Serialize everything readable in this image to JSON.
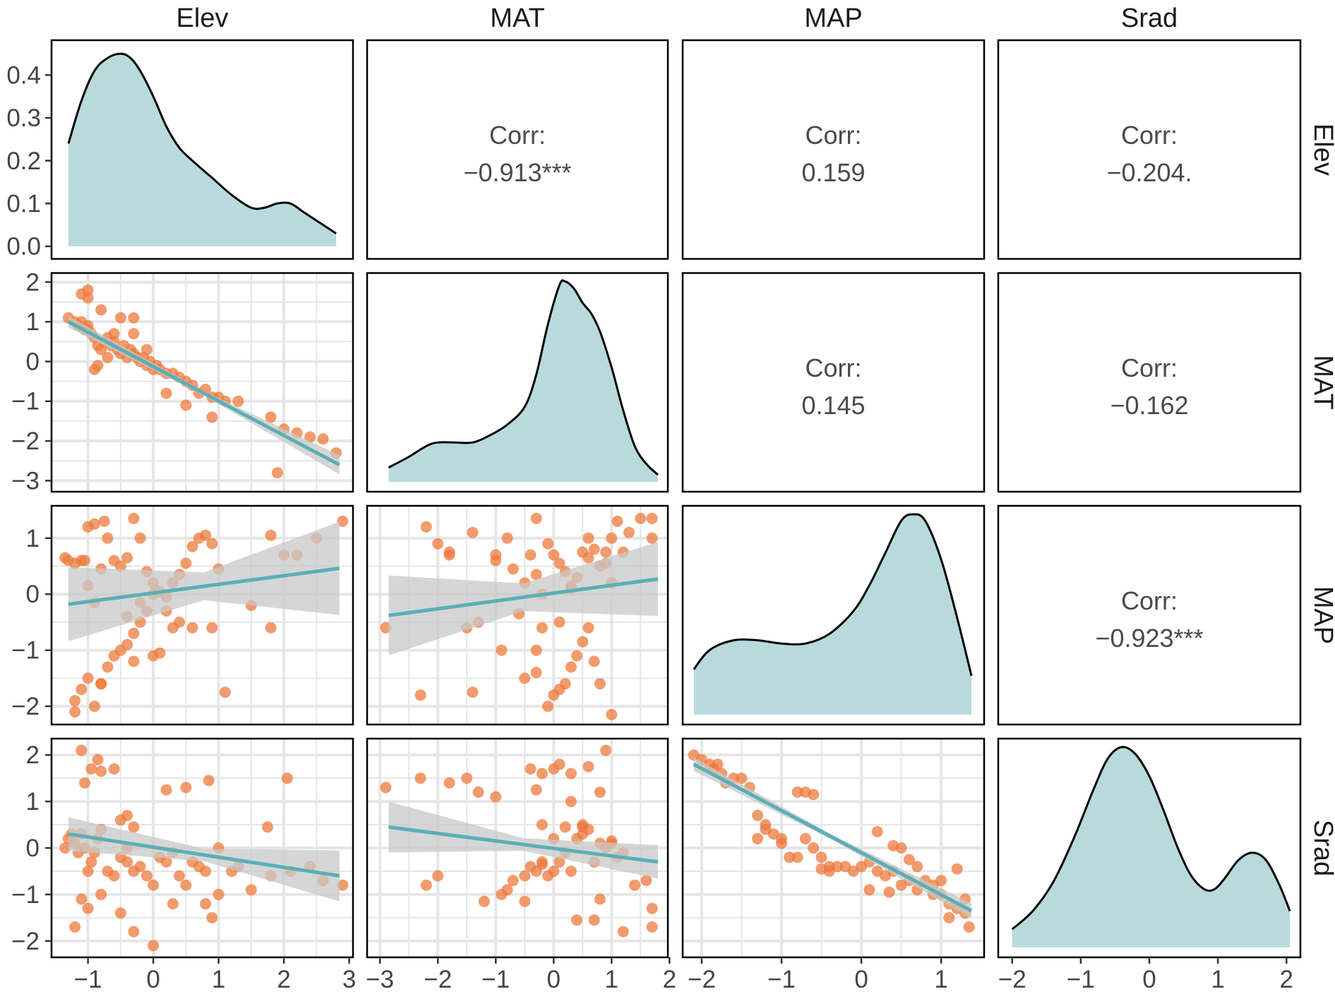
{
  "chart_data": {
    "type": "scatter-matrix",
    "variables": [
      "Elev",
      "MAT",
      "MAP",
      "Srad"
    ],
    "colors": {
      "density_fill": "#b8dadd",
      "density_line": "#000000",
      "point": "#ee7a3c",
      "fit_line": "#5aafb6",
      "ci_band": "#c8c8c8",
      "grid": "#e6e6e6",
      "panel_border": "#000000"
    },
    "x_ranges": [
      [
        -1.45,
        2.95
      ],
      [
        -3.1,
        1.85
      ],
      [
        -2.15,
        1.45
      ],
      [
        -2.1,
        2.1
      ]
    ],
    "y_ranges": [
      [
        -3.1,
        2.05
      ],
      [
        -2.2,
        1.45
      ],
      [
        -2.2,
        2.2
      ]
    ],
    "density_y_range": [
      -0.013,
      0.465
    ],
    "x_ticks": [
      [
        "−1",
        "0",
        "1",
        "2",
        "3"
      ],
      [
        "−3",
        "−2",
        "−1",
        "0",
        "1",
        "2"
      ],
      [
        "−2",
        "−1",
        "0",
        "1"
      ],
      [
        "−2",
        "−1",
        "0",
        "1",
        "2"
      ]
    ],
    "x_tick_values": [
      [
        -1,
        0,
        1,
        2,
        3
      ],
      [
        -3,
        -2,
        -1,
        0,
        1,
        2
      ],
      [
        -2,
        -1,
        0,
        1
      ],
      [
        -2,
        -1,
        0,
        1,
        2
      ]
    ],
    "density_y_ticks": [
      "0.0",
      "0.1",
      "0.2",
      "0.3",
      "0.4"
    ],
    "density_y_tick_values": [
      0,
      0.1,
      0.2,
      0.3,
      0.4
    ],
    "y_ticks": [
      [
        "−3",
        "−2",
        "−1",
        "0",
        "1",
        "2"
      ],
      [
        "−2",
        "−1",
        "0",
        "1"
      ],
      [
        "−2",
        "−1",
        "0",
        "1",
        "2"
      ]
    ],
    "y_tick_values": [
      [
        -3,
        -2,
        -1,
        0,
        1,
        2
      ],
      [
        -2,
        -1,
        0,
        1
      ],
      [
        -2,
        -1,
        0,
        1,
        2
      ]
    ],
    "correlations": [
      {
        "row": 0,
        "col": 1,
        "label": "Corr:",
        "value": "−0.913***"
      },
      {
        "row": 0,
        "col": 2,
        "label": "Corr:",
        "value": "0.159"
      },
      {
        "row": 0,
        "col": 3,
        "label": "Corr:",
        "value": "−0.204."
      },
      {
        "row": 1,
        "col": 2,
        "label": "Corr:",
        "value": "0.145"
      },
      {
        "row": 1,
        "col": 3,
        "label": "Corr:",
        "value": "−0.162"
      },
      {
        "row": 2,
        "col": 3,
        "label": "Corr:",
        "value": "−0.923***"
      }
    ],
    "densities": [
      {
        "var": "Elev",
        "x": [
          -1.3,
          -1.1,
          -0.9,
          -0.7,
          -0.5,
          -0.35,
          -0.2,
          0,
          0.2,
          0.4,
          0.6,
          0.9,
          1.2,
          1.5,
          1.7,
          1.9,
          2.1,
          2.3,
          2.5,
          2.8
        ],
        "y": [
          0.24,
          0.34,
          0.41,
          0.44,
          0.45,
          0.44,
          0.41,
          0.35,
          0.28,
          0.23,
          0.2,
          0.16,
          0.12,
          0.09,
          0.09,
          0.1,
          0.1,
          0.08,
          0.06,
          0.03
        ]
      },
      {
        "var": "MAT",
        "x": [
          -2.85,
          -2.5,
          -2.2,
          -2.0,
          -1.7,
          -1.4,
          -1.1,
          -0.8,
          -0.5,
          -0.3,
          -0.1,
          0.1,
          0.2,
          0.35,
          0.5,
          0.65,
          0.8,
          1.0,
          1.2,
          1.4,
          1.6,
          1.8
        ],
        "y": [
          0.04,
          0.07,
          0.1,
          0.11,
          0.11,
          0.11,
          0.13,
          0.16,
          0.21,
          0.3,
          0.44,
          0.55,
          0.56,
          0.54,
          0.5,
          0.47,
          0.42,
          0.32,
          0.2,
          0.1,
          0.05,
          0.02
        ]
      },
      {
        "var": "MAP",
        "x": [
          -2.1,
          -1.9,
          -1.6,
          -1.3,
          -1.0,
          -0.7,
          -0.4,
          -0.1,
          0.1,
          0.3,
          0.5,
          0.65,
          0.8,
          1.0,
          1.2,
          1.38
        ],
        "y": [
          0.14,
          0.2,
          0.23,
          0.23,
          0.22,
          0.22,
          0.25,
          0.32,
          0.4,
          0.5,
          0.6,
          0.62,
          0.6,
          0.48,
          0.3,
          0.12
        ]
      },
      {
        "var": "Srad",
        "x": [
          -2.0,
          -1.7,
          -1.4,
          -1.1,
          -0.8,
          -0.6,
          -0.4,
          -0.2,
          0,
          0.2,
          0.4,
          0.6,
          0.8,
          0.95,
          1.1,
          1.3,
          1.5,
          1.7,
          1.9,
          2.05
        ],
        "y": [
          0.05,
          0.1,
          0.18,
          0.3,
          0.44,
          0.52,
          0.55,
          0.53,
          0.47,
          0.38,
          0.28,
          0.2,
          0.16,
          0.16,
          0.19,
          0.24,
          0.26,
          0.24,
          0.17,
          0.1
        ]
      }
    ],
    "fits": [
      {
        "row": 1,
        "col": 0,
        "x": [
          -1.3,
          2.85
        ],
        "y": [
          1.0,
          -2.6
        ],
        "ci": [
          0.12,
          0.25
        ]
      },
      {
        "row": 2,
        "col": 0,
        "x": [
          -1.3,
          2.85
        ],
        "y": [
          -0.18,
          0.46
        ],
        "ci": [
          0.55,
          0.78
        ]
      },
      {
        "row": 2,
        "col": 1,
        "x": [
          -2.85,
          1.8
        ],
        "y": [
          -0.38,
          0.27
        ],
        "ci": [
          0.62,
          0.55
        ]
      },
      {
        "row": 3,
        "col": 0,
        "x": [
          -1.3,
          2.85
        ],
        "y": [
          0.3,
          -0.6
        ],
        "ci": [
          0.3,
          0.55
        ]
      },
      {
        "row": 3,
        "col": 1,
        "x": [
          -2.85,
          1.8
        ],
        "y": [
          0.45,
          -0.3
        ],
        "ci": [
          0.55,
          0.3
        ]
      },
      {
        "row": 3,
        "col": 2,
        "x": [
          -2.1,
          1.38
        ],
        "y": [
          1.8,
          -1.35
        ],
        "ci": [
          0.12,
          0.14
        ]
      }
    ],
    "scatter": [
      {
        "row": 1,
        "col": 0,
        "x": [
          -1.3,
          -1.2,
          -1.15,
          -1.1,
          -1.05,
          -1.0,
          -0.95,
          -1.1,
          -1.0,
          -0.9,
          -0.85,
          -0.8,
          -0.75,
          -0.7,
          -0.65,
          -0.6,
          -0.55,
          -0.5,
          -0.45,
          -0.4,
          -0.35,
          -0.3,
          -0.25,
          -0.2,
          -0.15,
          -0.1,
          -0.05,
          0.0,
          0.05,
          0.1,
          0.2,
          0.3,
          0.4,
          0.5,
          0.6,
          0.7,
          0.8,
          0.9,
          1.0,
          1.1,
          1.3,
          -1.0,
          -0.8,
          -0.6,
          -0.3,
          -0.1,
          0.2,
          0.5,
          0.9,
          1.8,
          2.0,
          2.2,
          2.4,
          2.6,
          2.8,
          -0.85,
          -0.5,
          -0.3,
          -1.0,
          1.9,
          -0.9,
          -0.7
        ],
        "y": [
          1.1,
          1.0,
          0.9,
          1.0,
          0.8,
          0.9,
          0.7,
          1.7,
          1.8,
          0.6,
          0.4,
          0.3,
          0.5,
          0.6,
          0.4,
          0.5,
          0.3,
          0.2,
          0.4,
          0.1,
          0.3,
          0.2,
          0.1,
          0.0,
          0.1,
          -0.1,
          0.0,
          -0.2,
          -0.1,
          -0.2,
          -0.3,
          -0.3,
          -0.4,
          -0.5,
          -0.6,
          -0.8,
          -0.7,
          -0.9,
          -0.9,
          -1.0,
          -1.0,
          0.8,
          1.3,
          0.7,
          1.1,
          0.3,
          -0.8,
          -1.1,
          -1.4,
          -1.4,
          -1.7,
          -1.8,
          -1.9,
          -1.95,
          -2.3,
          -0.1,
          1.1,
          0.7,
          1.6,
          -2.8,
          -0.2,
          0.1
        ]
      },
      {
        "row": 2,
        "col": 0,
        "x": [
          -1.35,
          -1.3,
          -1.2,
          -1.1,
          -1.05,
          -1.0,
          -0.9,
          -0.8,
          -0.75,
          -0.7,
          -0.6,
          -0.5,
          -0.4,
          -0.3,
          -0.2,
          -0.1,
          0.0,
          0.1,
          0.2,
          0.3,
          0.4,
          0.5,
          0.6,
          0.7,
          0.8,
          0.9,
          1.0,
          -1.2,
          -1.1,
          -1.0,
          -0.9,
          -0.8,
          -0.7,
          -0.6,
          -0.5,
          -0.4,
          -0.3,
          -0.2,
          -0.1,
          0.0,
          0.2,
          0.4,
          0.6,
          0.9,
          1.5,
          1.8,
          2.0,
          2.2,
          2.5,
          2.9,
          -1.0,
          -0.9,
          -0.4,
          0.0,
          0.1,
          0.3,
          1.1,
          1.8,
          -1.2,
          -0.8,
          -0.3,
          -0.2
        ],
        "y": [
          0.65,
          0.6,
          0.55,
          0.6,
          0.6,
          0.15,
          -0.15,
          0.45,
          1.3,
          1.0,
          0.6,
          0.5,
          0.65,
          1.35,
          1.0,
          0.4,
          0.2,
          0.05,
          -0.05,
          0.2,
          0.35,
          0.55,
          0.85,
          1.0,
          1.05,
          0.9,
          0.45,
          -1.9,
          -1.7,
          -1.5,
          -2.0,
          -1.6,
          -1.3,
          -1.1,
          -1.0,
          -0.9,
          -0.7,
          -0.5,
          -0.3,
          0.0,
          -0.3,
          -0.5,
          -0.6,
          -0.6,
          -0.2,
          1.05,
          0.7,
          0.7,
          1.0,
          1.3,
          1.2,
          1.25,
          -0.4,
          -1.1,
          -1.05,
          -0.6,
          -1.75,
          -0.6,
          -2.1,
          -1.6,
          -1.2,
          -0.15
        ]
      },
      {
        "row": 2,
        "col": 1,
        "x": [
          -2.9,
          -2.3,
          -2.0,
          -1.8,
          -1.5,
          -1.4,
          -1.3,
          -1.0,
          -0.9,
          -0.8,
          -0.7,
          -0.5,
          -0.4,
          -0.3,
          -0.2,
          -0.1,
          0.0,
          0.1,
          0.2,
          0.3,
          0.4,
          0.5,
          0.6,
          0.7,
          0.8,
          0.9,
          1.0,
          1.1,
          1.2,
          1.5,
          1.7,
          -0.5,
          -0.3,
          -0.1,
          0.0,
          0.2,
          0.3,
          0.5,
          0.6,
          0.8,
          1.0,
          -2.2,
          -1.4,
          -1.0,
          -0.6,
          -0.3,
          0.1,
          0.4,
          0.7,
          1.0,
          -0.3,
          -0.2,
          0.1,
          0.3,
          0.6,
          0.9,
          -1.8,
          1.3,
          1.7
        ],
        "y": [
          -0.6,
          -1.8,
          0.9,
          0.7,
          -0.6,
          1.1,
          -0.5,
          0.7,
          -1.0,
          1.0,
          0.45,
          0.2,
          0.7,
          1.35,
          -0.6,
          0.9,
          0.7,
          -0.5,
          0.4,
          0.1,
          0.3,
          0.75,
          1.0,
          0.8,
          0.5,
          0.75,
          0.2,
          1.3,
          0.75,
          1.35,
          1.35,
          -1.5,
          -1.4,
          -2.0,
          -1.8,
          -1.6,
          -1.3,
          -0.85,
          -0.6,
          -1.6,
          -2.15,
          1.2,
          -1.75,
          0.6,
          -0.35,
          -1.0,
          -1.7,
          -1.1,
          -1.2,
          1.0,
          0.35,
          0.0,
          0.55,
          0.15,
          0.65,
          0.55,
          0.75,
          1.1,
          1.0
        ]
      },
      {
        "row": 3,
        "col": 0,
        "x": [
          -1.35,
          -1.3,
          -1.25,
          -1.2,
          -1.15,
          -1.1,
          -1.05,
          -1.0,
          -0.95,
          -0.9,
          -0.85,
          -0.8,
          -0.7,
          -0.6,
          -0.5,
          -0.4,
          -0.3,
          -0.2,
          -0.1,
          0.0,
          0.1,
          0.2,
          0.3,
          0.4,
          0.5,
          0.6,
          0.7,
          0.8,
          0.9,
          1.0,
          1.2,
          1.5,
          1.8,
          2.1,
          2.4,
          2.6,
          2.9,
          -1.1,
          -1.05,
          -0.95,
          -0.85,
          -0.8,
          -0.6,
          -0.4,
          -0.3,
          0.2,
          0.5,
          0.85,
          1.3,
          1.75,
          2.05,
          -1.1,
          -1.0,
          -0.8,
          -0.5,
          -0.3,
          0.0,
          0.3,
          0.8,
          1.0,
          -0.5,
          -0.4,
          -1.2
        ],
        "y": [
          0.0,
          0.2,
          0.3,
          0.1,
          -0.1,
          0.3,
          0.0,
          -0.5,
          -0.3,
          -0.1,
          0.2,
          0.4,
          -0.5,
          -0.6,
          -0.2,
          -0.3,
          -0.5,
          -0.4,
          -0.6,
          -0.8,
          -0.2,
          -0.3,
          -0.1,
          -0.6,
          -0.8,
          -0.3,
          -0.4,
          -0.5,
          -1.5,
          -1.0,
          -0.5,
          -0.9,
          -0.6,
          -0.5,
          -0.4,
          -0.7,
          -0.8,
          2.1,
          1.4,
          1.7,
          1.9,
          1.65,
          1.7,
          0.7,
          0.45,
          1.25,
          1.3,
          1.45,
          -0.4,
          0.45,
          1.5,
          -1.1,
          -1.3,
          -1.0,
          -1.4,
          -1.8,
          -2.1,
          -1.2,
          -1.2,
          0.0,
          0.6,
          0.0,
          -1.7
        ]
      },
      {
        "row": 3,
        "col": 1,
        "x": [
          -2.9,
          -2.3,
          -2.2,
          -1.8,
          -1.5,
          -1.3,
          -1.0,
          -0.8,
          -0.7,
          -0.5,
          -0.4,
          -0.3,
          -0.2,
          -0.1,
          0.0,
          0.1,
          0.2,
          0.3,
          0.4,
          0.5,
          0.6,
          0.7,
          0.8,
          0.9,
          1.0,
          1.1,
          1.2,
          1.4,
          1.6,
          1.7,
          -0.4,
          -0.2,
          0.0,
          0.1,
          0.3,
          0.6,
          0.9,
          -0.2,
          0.0,
          0.3,
          0.5,
          0.8,
          1.0,
          -2.0,
          -1.2,
          -0.9,
          -0.5,
          -0.2,
          0.4,
          0.8,
          1.2,
          1.7,
          -0.3,
          0.2,
          0.5,
          0.7
        ],
        "y": [
          1.3,
          1.5,
          -0.8,
          1.4,
          1.5,
          1.2,
          1.1,
          -0.9,
          -0.7,
          -0.6,
          -0.4,
          -0.5,
          -0.3,
          -0.6,
          -0.5,
          -0.3,
          -0.1,
          -0.5,
          0.2,
          0.3,
          0.4,
          -0.3,
          0.1,
          0.0,
          0.1,
          -0.2,
          -0.1,
          -0.8,
          -0.7,
          -1.3,
          1.7,
          1.6,
          1.7,
          1.8,
          1.6,
          1.75,
          2.1,
          0.5,
          0.2,
          1.0,
          0.5,
          1.2,
          0.15,
          -0.6,
          -1.15,
          -1.0,
          -1.15,
          -0.35,
          -1.55,
          -1.1,
          -1.8,
          -1.7,
          1.25,
          0.45,
          0.45,
          -1.55
        ]
      },
      {
        "row": 3,
        "col": 2,
        "x": [
          -2.1,
          -2.0,
          -1.9,
          -1.85,
          -1.8,
          -1.75,
          -1.7,
          -1.6,
          -1.5,
          -1.4,
          -1.3,
          -1.2,
          -1.1,
          -1.0,
          -0.9,
          -0.8,
          -0.7,
          -0.6,
          -0.5,
          -0.4,
          -0.3,
          -0.2,
          -0.1,
          0.0,
          0.1,
          0.2,
          0.3,
          0.4,
          0.5,
          0.6,
          0.7,
          0.8,
          0.9,
          1.0,
          1.1,
          1.2,
          1.3,
          1.35,
          -1.3,
          -1.2,
          -1.0,
          -0.8,
          -0.7,
          -0.6,
          -0.5,
          -0.4,
          0.2,
          0.4,
          0.5,
          0.6,
          0.7,
          1.2,
          1.3,
          0.9,
          1.0,
          1.1,
          0.1,
          0.35
        ],
        "y": [
          2.0,
          1.9,
          1.8,
          1.7,
          1.8,
          1.6,
          1.4,
          1.5,
          1.5,
          1.3,
          0.7,
          0.5,
          0.3,
          0.1,
          -0.2,
          -0.2,
          0.2,
          0.0,
          -0.2,
          -0.4,
          -0.4,
          -0.4,
          -0.5,
          -0.4,
          -0.3,
          -0.5,
          -0.6,
          -0.5,
          -0.8,
          -0.7,
          -0.9,
          -0.7,
          -1.0,
          -1.0,
          -1.2,
          -1.3,
          -1.4,
          -1.7,
          0.2,
          0.4,
          0.2,
          1.2,
          1.2,
          1.15,
          -0.45,
          -0.5,
          0.35,
          0.05,
          0.0,
          -0.25,
          -0.4,
          -0.45,
          -1.1,
          -0.8,
          -0.7,
          -1.5,
          -0.9,
          -0.95
        ]
      }
    ]
  }
}
